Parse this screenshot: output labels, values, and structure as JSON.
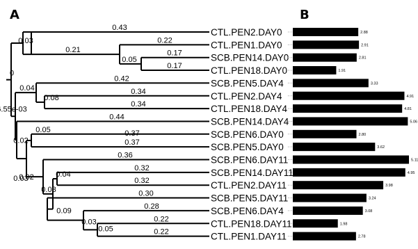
{
  "panels": {
    "tree_letter": "A",
    "bars_letter": "B"
  },
  "chart_data": [
    {
      "type": "dendrogram",
      "leaves": [
        "CTL.PEN2.DAY0",
        "CTL.PEN1.DAY0",
        "SCB.PEN14.DAY0",
        "CTL.PEN18.DAY0",
        "SCB.PEN5.DAY4",
        "CTL.PEN2.DAY4",
        "CTL.PEN18.DAY4",
        "SCB.PEN14.DAY4",
        "SCB.PEN6.DAY0",
        "SCB.PEN5.DAY0",
        "SCB.PEN6.DAY11",
        "SCB.PEN14.DAY11",
        "CTL.PEN2.DAY11",
        "SCB.PEN5.DAY11",
        "SCB.PEN6.DAY4",
        "CTL.PEN18.DAY11",
        "CTL.PEN1.DAY11"
      ],
      "branch_labels": [
        "0.43",
        "0.03",
        "0.22",
        "0.21",
        "0.17",
        "0.05",
        "0.17",
        "0",
        "0.42",
        "0.04",
        "0.34",
        "0.08",
        "0.34",
        "6.55e-03",
        "0.44",
        "0.02",
        "0.05",
        "0.37",
        "0.37",
        "0.02",
        "0.36",
        "0.03",
        "0.32",
        "0.04",
        "0.32",
        "0.03",
        "0.30",
        "0.09",
        "0.28",
        "0.03",
        "0.22",
        "0.05",
        "0.22"
      ]
    },
    {
      "type": "bar",
      "orientation": "horizontal",
      "categories": [
        "CTL.PEN2.DAY0",
        "CTL.PEN1.DAY0",
        "SCB.PEN14.DAY0",
        "CTL.PEN18.DAY0",
        "SCB.PEN5.DAY4",
        "CTL.PEN2.DAY4",
        "CTL.PEN18.DAY4",
        "SCB.PEN14.DAY4",
        "SCB.PEN6.DAY0",
        "SCB.PEN5.DAY0",
        "SCB.PEN6.DAY11",
        "SCB.PEN14.DAY11",
        "CTL.PEN2.DAY11",
        "SCB.PEN5.DAY11",
        "SCB.PEN6.DAY4",
        "CTL.PEN18.DAY11",
        "CTL.PEN1.DAY11"
      ],
      "values": [
        2.88,
        2.91,
        2.81,
        1.91,
        3.33,
        4.91,
        4.81,
        5.06,
        2.8,
        3.62,
        5.11,
        4.95,
        3.98,
        3.24,
        3.08,
        1.98,
        2.78
      ],
      "value_labels": [
        "2.88",
        "2.91",
        "2.81",
        "1.91",
        "3.33",
        "4.91",
        "4.81",
        "5.06",
        "2.80",
        "3.62",
        "5.11",
        "4.95",
        "3.98",
        "3.24",
        "3.08",
        "1.98",
        "2.78"
      ],
      "colors": {
        "bar": "#000000"
      }
    }
  ]
}
